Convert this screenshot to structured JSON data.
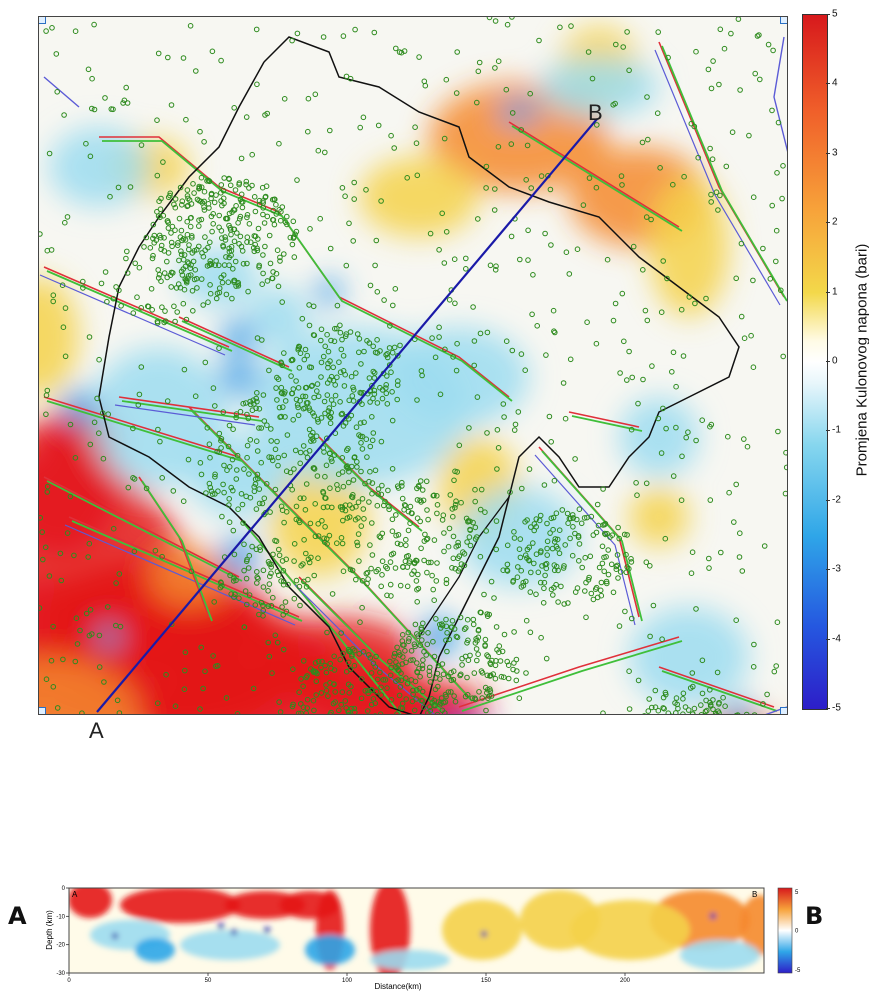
{
  "map": {
    "profile_start_label": "A",
    "profile_end_label": "B",
    "colorbar": {
      "label": "Promjena Kulonovog napona (bari)",
      "ticks": [
        "5",
        "4",
        "3",
        "2",
        "1",
        "0",
        "-1",
        "-2",
        "-3",
        "-4",
        "-5"
      ],
      "colors": [
        "#d7191c",
        "#f0602a",
        "#f7a23a",
        "#f3d84a",
        "#fffbe6",
        "#ffffff",
        "#e8f6fb",
        "#86d6ee",
        "#2fa6e8",
        "#2558e0",
        "#2d1ec8"
      ]
    },
    "colors": {
      "epicenter": "#2e8b1e",
      "fault_red": "#e0303a",
      "fault_green": "#3fbf3a",
      "fault_blue": "#5b5bd6",
      "border": "#111111",
      "profile_line": "#1a1aa8"
    }
  },
  "profile": {
    "left_label": "A",
    "right_label": "B",
    "corner_left": "A",
    "corner_right": "B",
    "ylabel": "Depth (km)",
    "xlabel": "Distance(km)",
    "yticks": [
      "0",
      "-10",
      "-20",
      "-30"
    ],
    "xticks": [
      "0",
      "50",
      "100",
      "150",
      "200"
    ],
    "colorbar_ticks": [
      "5",
      "0",
      "-5"
    ]
  },
  "chart_data": [
    {
      "type": "heatmap",
      "title": "",
      "colorbar_label": "Promjena Kulonovog napona (bari)",
      "colorbar_range": [
        -5,
        5
      ],
      "colorbar_ticks": [
        5,
        4,
        3,
        2,
        1,
        0,
        -1,
        -2,
        -3,
        -4,
        -5
      ],
      "profile_endpoints": [
        "A",
        "B"
      ]
    },
    {
      "type": "heatmap",
      "xlabel": "Distance(km)",
      "ylabel": "Depth (km)",
      "xlim": [
        0,
        250
      ],
      "ylim": [
        -30,
        0
      ],
      "xticks": [
        0,
        50,
        100,
        150,
        200
      ],
      "yticks": [
        0,
        -10,
        -20,
        -30
      ],
      "colorbar_range": [
        -5,
        5
      ],
      "colorbar_ticks": [
        5,
        0,
        -5
      ]
    }
  ]
}
